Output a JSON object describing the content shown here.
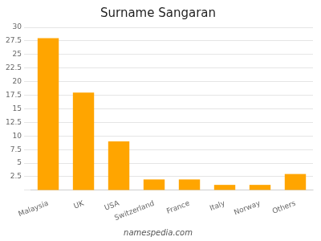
{
  "chart_data": {
    "type": "bar",
    "title": "Surname Sangaran",
    "categories": [
      "Malaysia",
      "UK",
      "USA",
      "Switzerland",
      "France",
      "Italy",
      "Norway",
      "Others"
    ],
    "values": [
      28,
      18,
      9,
      2,
      2,
      1,
      1,
      3
    ],
    "color": "#FFA500",
    "ylim": [
      0,
      30
    ],
    "yticks": [
      {
        "value": 0,
        "label": ""
      },
      2.5,
      5,
      7.5,
      10,
      12.5,
      15,
      17.5,
      20,
      22.5,
      25,
      27.5,
      30
    ],
    "grid": true,
    "footer": "namespedia.com"
  }
}
